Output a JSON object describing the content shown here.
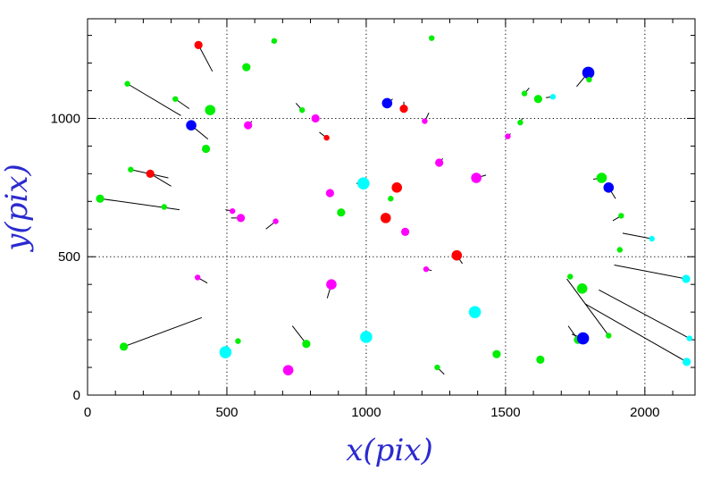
{
  "chart_data": {
    "type": "scatter",
    "xlabel": "x(pix)",
    "ylabel": "y(pix)",
    "xlim": [
      0,
      2180
    ],
    "ylim": [
      0,
      1360
    ],
    "xticks": [
      "0",
      "500",
      "1000",
      "1500",
      "2000"
    ],
    "yticks": [
      "0",
      "500",
      "1000"
    ],
    "xtick_values": [
      0,
      500,
      1000,
      1500,
      2000
    ],
    "ytick_values": [
      0,
      500,
      1000
    ],
    "grid_lines_x": [
      500,
      1000,
      1500,
      2000
    ],
    "grid_lines_y": [
      500,
      1000
    ],
    "grid": "dotted",
    "colors": {
      "red": "#ff0000",
      "green": "#00ee00",
      "magenta": "#ff00ff",
      "cyan": "#00ffff",
      "blue": "#0000ff"
    },
    "points": [
      {
        "x": 398,
        "y": 1265,
        "color": "red",
        "size": 1,
        "vx": 448,
        "vy": 1170
      },
      {
        "x": 670,
        "y": 1280,
        "color": "green",
        "size": 0,
        "vx": 660,
        "vy": 1275
      },
      {
        "x": 570,
        "y": 1185,
        "color": "green",
        "size": 1,
        "vx": 570,
        "vy": 1185
      },
      {
        "x": 1235,
        "y": 1290,
        "color": "green",
        "size": 0,
        "vx": 1235,
        "vy": 1290
      },
      {
        "x": 143,
        "y": 1125,
        "color": "green",
        "size": 0,
        "vx": 335,
        "vy": 1010
      },
      {
        "x": 315,
        "y": 1070,
        "color": "green",
        "size": 0,
        "vx": 365,
        "vy": 1035
      },
      {
        "x": 440,
        "y": 1030,
        "color": "green",
        "size": 2,
        "vx": 440,
        "vy": 1030
      },
      {
        "x": 372,
        "y": 975,
        "color": "blue",
        "size": 2,
        "vx": 432,
        "vy": 925
      },
      {
        "x": 576,
        "y": 975,
        "color": "magenta",
        "size": 1,
        "vx": 590,
        "vy": 990
      },
      {
        "x": 770,
        "y": 1030,
        "color": "green",
        "size": 0,
        "vx": 748,
        "vy": 1055
      },
      {
        "x": 818,
        "y": 1000,
        "color": "magenta",
        "size": 1,
        "vx": 818,
        "vy": 1000
      },
      {
        "x": 858,
        "y": 930,
        "color": "red",
        "size": 0,
        "vx": 832,
        "vy": 950
      },
      {
        "x": 1075,
        "y": 1055,
        "color": "blue",
        "size": 2,
        "vx": 1095,
        "vy": 1070
      },
      {
        "x": 1135,
        "y": 1035,
        "color": "red",
        "size": 1,
        "vx": 1135,
        "vy": 1060
      },
      {
        "x": 1210,
        "y": 990,
        "color": "magenta",
        "size": 0,
        "vx": 1225,
        "vy": 1020
      },
      {
        "x": 1508,
        "y": 935,
        "color": "magenta",
        "size": 0,
        "vx": 1518,
        "vy": 945
      },
      {
        "x": 1553,
        "y": 985,
        "color": "green",
        "size": 0,
        "vx": 1560,
        "vy": 1000
      },
      {
        "x": 1568,
        "y": 1090,
        "color": "green",
        "size": 0,
        "vx": 1585,
        "vy": 1110
      },
      {
        "x": 1617,
        "y": 1070,
        "color": "green",
        "size": 1,
        "vx": 1617,
        "vy": 1070
      },
      {
        "x": 1670,
        "y": 1078,
        "color": "cyan",
        "size": 0,
        "vx": 1645,
        "vy": 1075
      },
      {
        "x": 1797,
        "y": 1165,
        "color": "blue",
        "size": 3,
        "vx": 1755,
        "vy": 1115
      },
      {
        "x": 1800,
        "y": 1140,
        "color": "green",
        "size": 0,
        "vx": 1800,
        "vy": 1140
      },
      {
        "x": 425,
        "y": 890,
        "color": "green",
        "size": 1,
        "vx": 425,
        "vy": 890
      },
      {
        "x": 155,
        "y": 815,
        "color": "green",
        "size": 0,
        "vx": 290,
        "vy": 785
      },
      {
        "x": 225,
        "y": 800,
        "color": "red",
        "size": 1,
        "vx": 300,
        "vy": 755
      },
      {
        "x": 45,
        "y": 710,
        "color": "green",
        "size": 1,
        "vx": 330,
        "vy": 670
      },
      {
        "x": 275,
        "y": 680,
        "color": "green",
        "size": 0,
        "vx": 275,
        "vy": 680
      },
      {
        "x": 520,
        "y": 665,
        "color": "magenta",
        "size": 0,
        "vx": 495,
        "vy": 670
      },
      {
        "x": 550,
        "y": 640,
        "color": "magenta",
        "size": 1,
        "vx": 515,
        "vy": 640
      },
      {
        "x": 675,
        "y": 628,
        "color": "magenta",
        "size": 0,
        "vx": 640,
        "vy": 600
      },
      {
        "x": 870,
        "y": 730,
        "color": "magenta",
        "size": 1,
        "vx": 870,
        "vy": 730
      },
      {
        "x": 910,
        "y": 660,
        "color": "green",
        "size": 1,
        "vx": 910,
        "vy": 660
      },
      {
        "x": 990,
        "y": 765,
        "color": "cyan",
        "size": 3,
        "vx": 965,
        "vy": 765
      },
      {
        "x": 1070,
        "y": 640,
        "color": "red",
        "size": 2,
        "vx": 1070,
        "vy": 640
      },
      {
        "x": 1088,
        "y": 710,
        "color": "green",
        "size": 0,
        "vx": 1088,
        "vy": 710
      },
      {
        "x": 1110,
        "y": 750,
        "color": "red",
        "size": 2,
        "vx": 1110,
        "vy": 750
      },
      {
        "x": 1262,
        "y": 840,
        "color": "magenta",
        "size": 1,
        "vx": 1275,
        "vy": 855
      },
      {
        "x": 1395,
        "y": 785,
        "color": "magenta",
        "size": 2,
        "vx": 1430,
        "vy": 795
      },
      {
        "x": 1140,
        "y": 590,
        "color": "magenta",
        "size": 1,
        "vx": 1140,
        "vy": 590
      },
      {
        "x": 1845,
        "y": 785,
        "color": "green",
        "size": 2,
        "vx": 1815,
        "vy": 780
      },
      {
        "x": 1870,
        "y": 750,
        "color": "blue",
        "size": 2,
        "vx": 1895,
        "vy": 710
      },
      {
        "x": 1915,
        "y": 648,
        "color": "green",
        "size": 0,
        "vx": 1885,
        "vy": 630
      },
      {
        "x": 1910,
        "y": 525,
        "color": "green",
        "size": 0,
        "vx": 1920,
        "vy": 525
      },
      {
        "x": 2025,
        "y": 565,
        "color": "cyan",
        "size": 0,
        "vx": 1920,
        "vy": 585
      },
      {
        "x": 395,
        "y": 425,
        "color": "magenta",
        "size": 0,
        "vx": 430,
        "vy": 405
      },
      {
        "x": 875,
        "y": 400,
        "color": "magenta",
        "size": 2,
        "vx": 860,
        "vy": 350
      },
      {
        "x": 1215,
        "y": 455,
        "color": "magenta",
        "size": 0,
        "vx": 1235,
        "vy": 450
      },
      {
        "x": 1325,
        "y": 505,
        "color": "red",
        "size": 2,
        "vx": 1345,
        "vy": 475
      },
      {
        "x": 1390,
        "y": 300,
        "color": "cyan",
        "size": 3,
        "vx": 1390,
        "vy": 300
      },
      {
        "x": 1732,
        "y": 428,
        "color": "green",
        "size": 0,
        "vx": 1732,
        "vy": 428
      },
      {
        "x": 1775,
        "y": 385,
        "color": "green",
        "size": 2,
        "vx": 1775,
        "vy": 385
      },
      {
        "x": 2148,
        "y": 420,
        "color": "cyan",
        "size": 1,
        "vx": 1890,
        "vy": 470
      },
      {
        "x": 130,
        "y": 175,
        "color": "green",
        "size": 1,
        "vx": 410,
        "vy": 280
      },
      {
        "x": 495,
        "y": 155,
        "color": "cyan",
        "size": 3,
        "vx": 495,
        "vy": 155
      },
      {
        "x": 540,
        "y": 195,
        "color": "green",
        "size": 0,
        "vx": 540,
        "vy": 195
      },
      {
        "x": 785,
        "y": 185,
        "color": "green",
        "size": 1,
        "vx": 735,
        "vy": 250
      },
      {
        "x": 720,
        "y": 90,
        "color": "magenta",
        "size": 2,
        "vx": 720,
        "vy": 90
      },
      {
        "x": 1000,
        "y": 210,
        "color": "cyan",
        "size": 3,
        "vx": 1000,
        "vy": 210
      },
      {
        "x": 1468,
        "y": 148,
        "color": "green",
        "size": 1,
        "vx": 1468,
        "vy": 148
      },
      {
        "x": 1255,
        "y": 100,
        "color": "green",
        "size": 0,
        "vx": 1280,
        "vy": 75
      },
      {
        "x": 1625,
        "y": 128,
        "color": "green",
        "size": 1,
        "vx": 1625,
        "vy": 128
      },
      {
        "x": 1760,
        "y": 200,
        "color": "green",
        "size": 1,
        "vx": 1725,
        "vy": 250
      },
      {
        "x": 1778,
        "y": 205,
        "color": "blue",
        "size": 3,
        "vx": 1738,
        "vy": 220
      },
      {
        "x": 1870,
        "y": 215,
        "color": "green",
        "size": 0,
        "vx": 1720,
        "vy": 420
      },
      {
        "x": 2160,
        "y": 205,
        "color": "cyan",
        "size": 0,
        "vx": 1835,
        "vy": 380
      },
      {
        "x": 2150,
        "y": 120,
        "color": "cyan",
        "size": 1,
        "vx": 1785,
        "vy": 330
      }
    ]
  }
}
